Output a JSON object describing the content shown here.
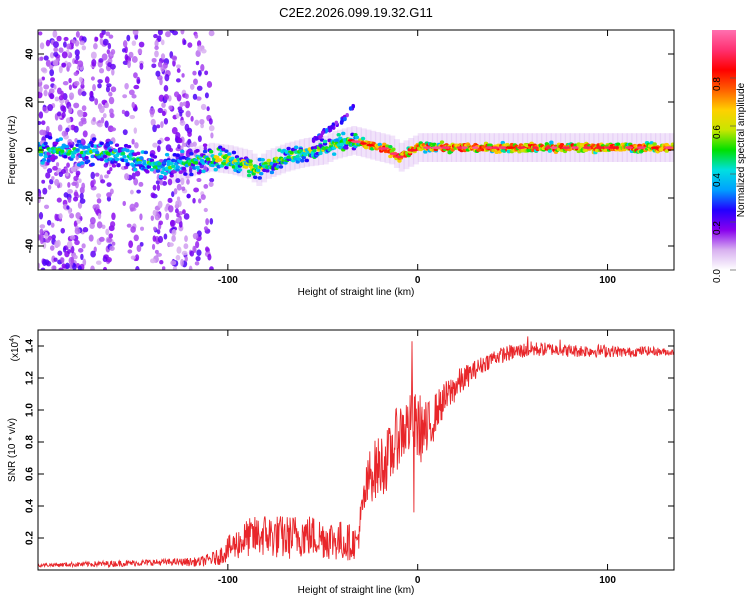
{
  "title": "C2E2.2026.099.19.32.G11",
  "chart_data": [
    {
      "type": "heatmap",
      "name": "spectrogram",
      "xlabel": "Height of straight line (km)",
      "ylabel": "Frequency (Hz)",
      "xlim": [
        -200,
        135
      ],
      "ylim": [
        -50,
        50
      ],
      "x_ticks": [
        -100,
        0,
        100
      ],
      "x_tick_labels": [
        "-100",
        "0",
        "100"
      ],
      "y_ticks": [
        -40,
        -20,
        0,
        20,
        40
      ],
      "y_tick_labels": [
        "-40",
        "-20",
        "0",
        "20",
        "40"
      ],
      "colorbar": {
        "label": "Normalized spectral amplitude",
        "range": [
          0,
          1
        ],
        "ticks": [
          0.0,
          0.2,
          0.4,
          0.6,
          0.8
        ],
        "tick_labels": [
          "0.0",
          "0.2",
          "0.4",
          "0.6",
          "0.8"
        ],
        "colors": [
          "#ffffff",
          "#d8b0f0",
          "#8800ee",
          "#2200ff",
          "#00a0ff",
          "#00e0e0",
          "#00e000",
          "#c8e600",
          "#ffd000",
          "#ff6000",
          "#ff0000",
          "#ff3070",
          "#ff70b0"
        ]
      },
      "ridge": {
        "x": [
          -200,
          -170,
          -150,
          -140,
          -130,
          -120,
          -110,
          -100,
          -90,
          -85,
          -80,
          -70,
          -60,
          -50,
          -45,
          -40,
          -35,
          -30,
          -20,
          -15,
          -10,
          0,
          20,
          60,
          100,
          135
        ],
        "y": [
          0,
          -1,
          -3,
          -6,
          -8,
          -5,
          -3,
          -4,
          -6,
          -9,
          -6,
          -3,
          -1,
          0,
          2,
          3,
          4,
          3,
          1,
          0,
          -3,
          1,
          1,
          1,
          1,
          1
        ]
      },
      "branch": {
        "x": [
          -55,
          -48,
          -42,
          -37,
          -33
        ],
        "y": [
          4,
          8,
          11,
          15,
          19
        ]
      },
      "speckle_bands": [
        {
          "x": [
            -200,
            -175
          ],
          "density": 0.9
        },
        {
          "x": [
            -172,
            -160
          ],
          "density": 0.75
        },
        {
          "x": [
            -155,
            -145
          ],
          "density": 0.5
        },
        {
          "x": [
            -140,
            -120
          ],
          "density": 0.7
        },
        {
          "x": [
            -120,
            -108
          ],
          "density": 0.45
        }
      ]
    },
    {
      "type": "line",
      "name": "snr",
      "xlabel": "Height of straight line (km)",
      "ylabel": "SNR (10 * v/v)",
      "y_multiplier": "(x10",
      "y_multiplier_exp": "4",
      "y_multiplier_close": ")",
      "xlim": [
        -200,
        135
      ],
      "ylim": [
        0,
        1.5
      ],
      "x_ticks": [
        -100,
        0,
        100
      ],
      "x_tick_labels": [
        "-100",
        "0",
        "100"
      ],
      "y_ticks": [
        0.2,
        0.4,
        0.6,
        0.8,
        1.0,
        1.2,
        1.4
      ],
      "y_tick_labels": [
        "0.2",
        "0.4",
        "0.6",
        "0.8",
        "1.0",
        "1.2",
        "1.4"
      ],
      "color": "#e8262a",
      "envelope": {
        "x": [
          -200,
          -160,
          -130,
          -115,
          -105,
          -100,
          -90,
          -80,
          -70,
          -60,
          -50,
          -40,
          -32,
          -28,
          -25,
          -20,
          -15,
          -10,
          -5,
          0,
          5,
          10,
          20,
          30,
          40,
          50,
          60,
          70,
          80,
          90,
          100,
          110,
          120,
          135
        ],
        "mean": [
          0.03,
          0.04,
          0.05,
          0.05,
          0.08,
          0.13,
          0.2,
          0.22,
          0.2,
          0.22,
          0.2,
          0.18,
          0.17,
          0.45,
          0.6,
          0.65,
          0.7,
          0.85,
          0.9,
          0.9,
          0.85,
          1.0,
          1.15,
          1.25,
          1.33,
          1.36,
          1.38,
          1.38,
          1.37,
          1.37,
          1.37,
          1.36,
          1.37,
          1.36
        ],
        "noise": [
          0.01,
          0.02,
          0.02,
          0.03,
          0.05,
          0.08,
          0.12,
          0.14,
          0.14,
          0.14,
          0.13,
          0.13,
          0.1,
          0.15,
          0.18,
          0.2,
          0.2,
          0.2,
          0.2,
          0.22,
          0.2,
          0.12,
          0.1,
          0.06,
          0.05,
          0.05,
          0.05,
          0.04,
          0.04,
          0.04,
          0.04,
          0.03,
          0.03,
          0.02
        ]
      },
      "spikes": [
        {
          "x": -3,
          "y": 1.43
        },
        {
          "x": -2,
          "y": 0.36
        },
        {
          "x": 58,
          "y": 1.46
        },
        {
          "x": 75,
          "y": 1.44
        }
      ]
    }
  ]
}
